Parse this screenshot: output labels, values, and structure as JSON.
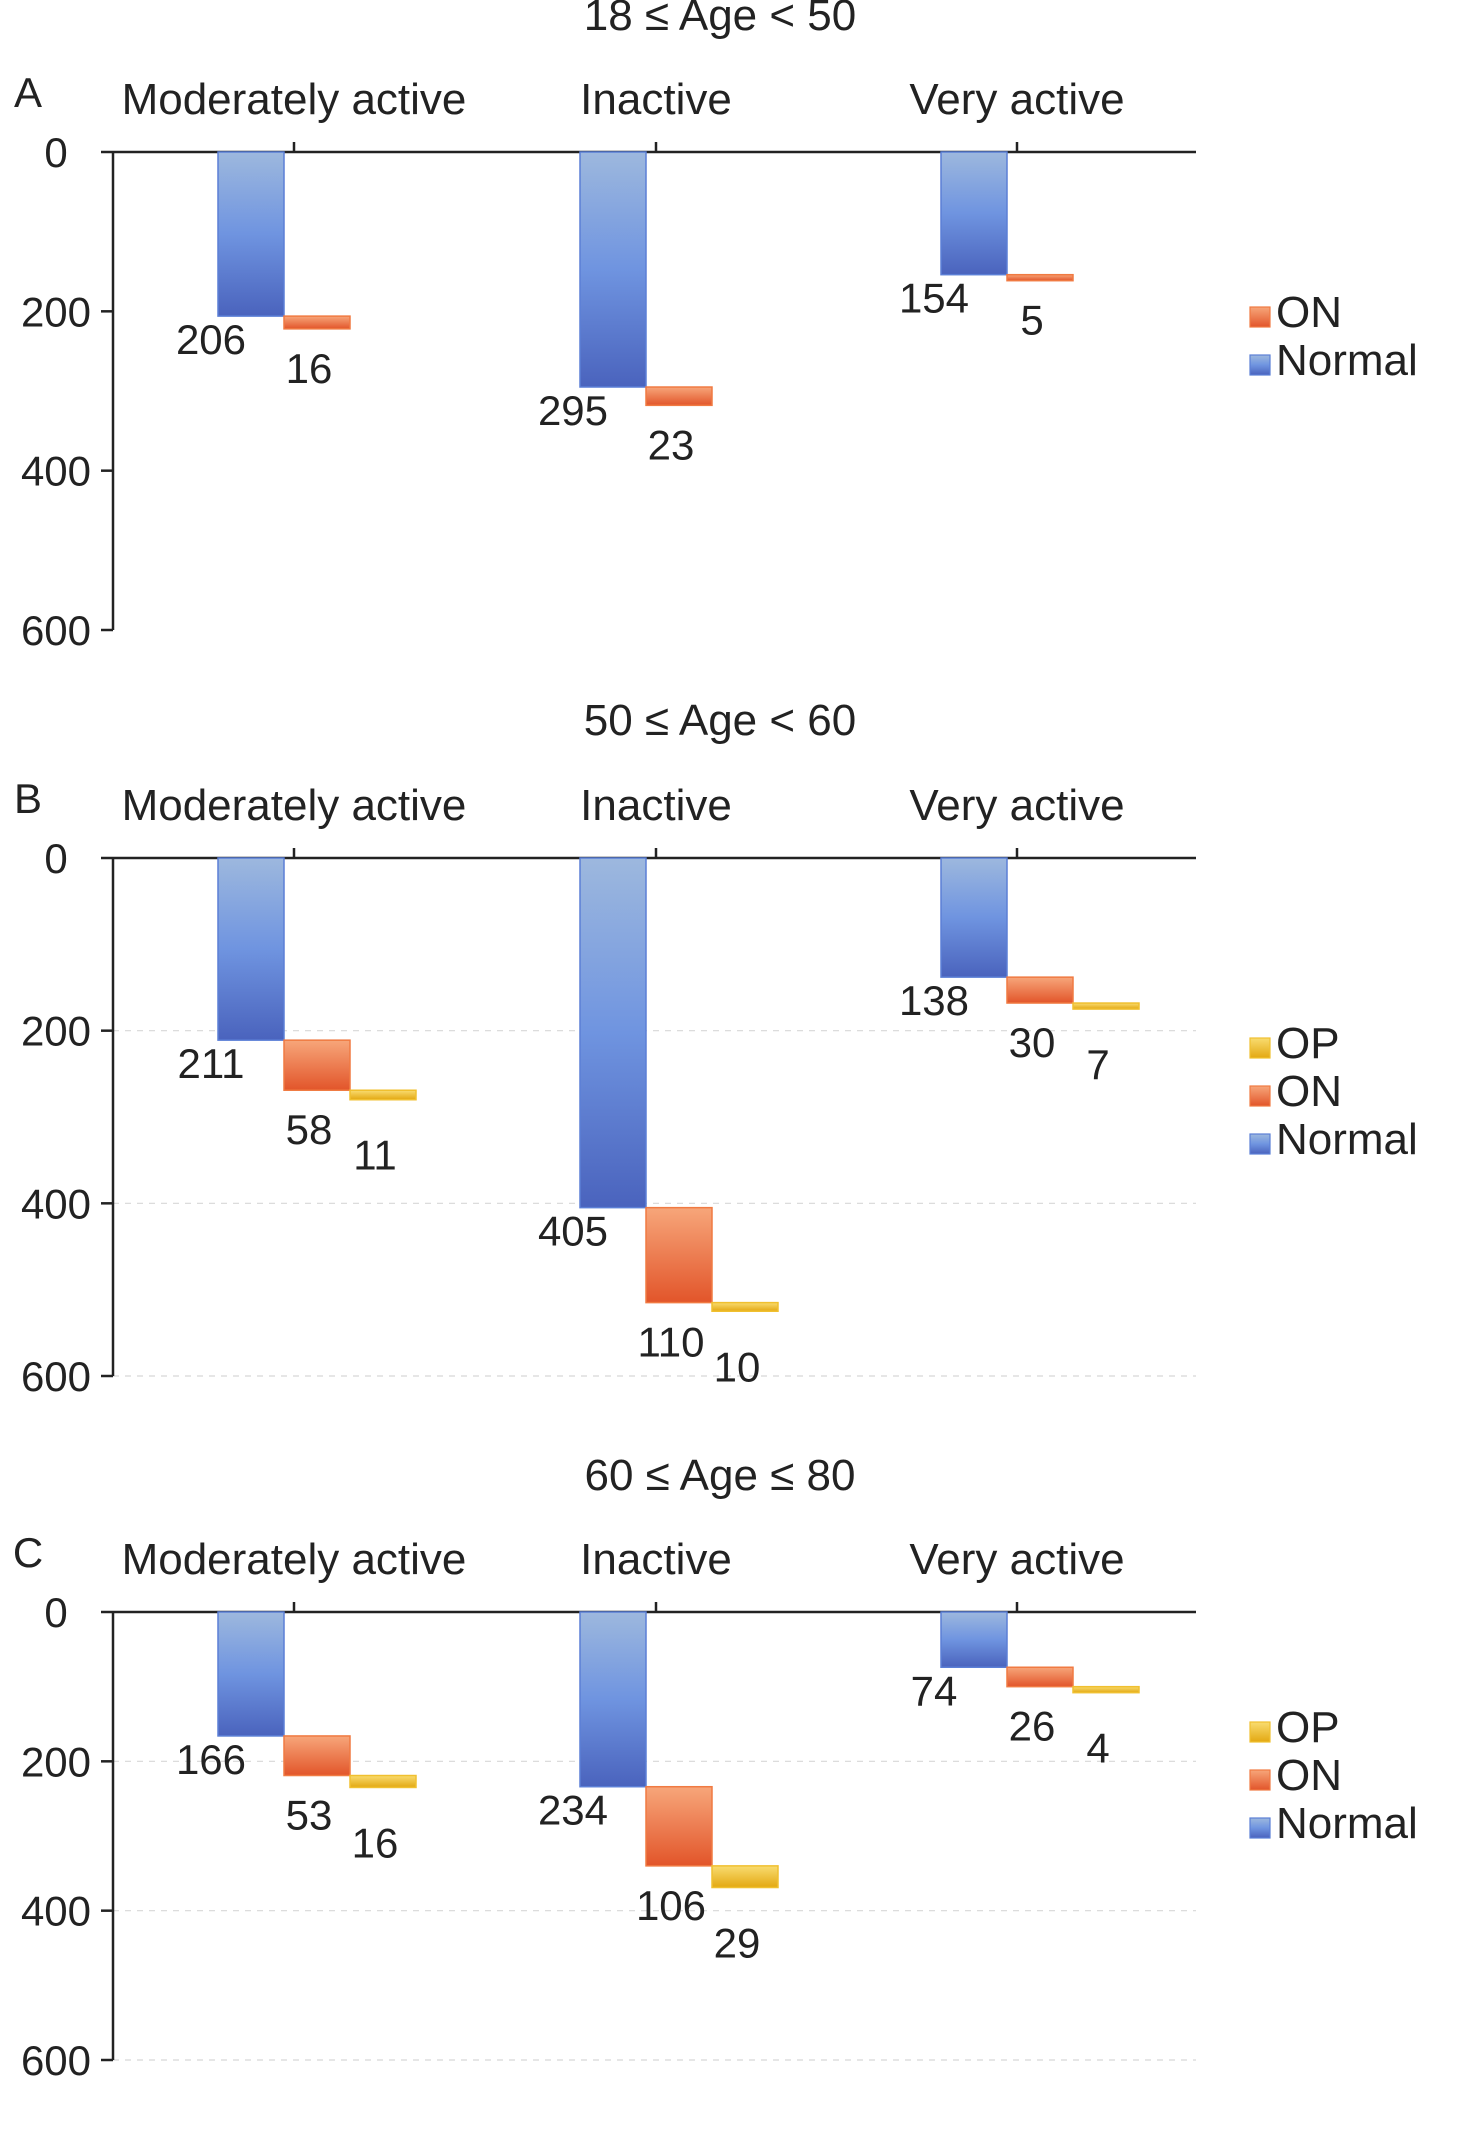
{
  "colors": {
    "Normal": "#5b7fd6",
    "ON": "#f07a42",
    "OP": "#f0c030",
    "axis": "#222222",
    "grid": "#d8d8d8"
  },
  "chart_data": [
    {
      "type": "bar",
      "panel_label": "A",
      "title": "18 ≤ Age < 50",
      "categories": [
        "Moderately active",
        "Inactive",
        "Very active"
      ],
      "ylim": [
        0,
        600
      ],
      "yticks": [
        0,
        200,
        400,
        600
      ],
      "y_inverted": true,
      "stacked_cascade": true,
      "grid": false,
      "legend": "right",
      "legend_order": [
        "ON",
        "Normal"
      ],
      "series": [
        {
          "name": "Normal",
          "values": [
            206,
            295,
            154
          ]
        },
        {
          "name": "ON",
          "values": [
            16,
            23,
            5
          ]
        }
      ]
    },
    {
      "type": "bar",
      "panel_label": "B",
      "title": "50 ≤ Age < 60",
      "categories": [
        "Moderately active",
        "Inactive",
        "Very active"
      ],
      "ylim": [
        0,
        600
      ],
      "yticks": [
        0,
        200,
        400,
        600
      ],
      "y_inverted": true,
      "stacked_cascade": true,
      "grid": true,
      "legend": "right",
      "legend_order": [
        "OP",
        "ON",
        "Normal"
      ],
      "series": [
        {
          "name": "Normal",
          "values": [
            211,
            405,
            138
          ]
        },
        {
          "name": "ON",
          "values": [
            58,
            110,
            30
          ]
        },
        {
          "name": "OP",
          "values": [
            11,
            10,
            7
          ]
        }
      ]
    },
    {
      "type": "bar",
      "panel_label": "C",
      "title": "60 ≤ Age ≤ 80",
      "categories": [
        "Moderately active",
        "Inactive",
        "Very active"
      ],
      "ylim": [
        0,
        600
      ],
      "yticks": [
        0,
        200,
        400,
        600
      ],
      "y_inverted": true,
      "stacked_cascade": true,
      "grid": true,
      "legend": "right",
      "legend_order": [
        "OP",
        "ON",
        "Normal"
      ],
      "series": [
        {
          "name": "Normal",
          "values": [
            166,
            234,
            74
          ]
        },
        {
          "name": "ON",
          "values": [
            53,
            106,
            26
          ]
        },
        {
          "name": "OP",
          "values": [
            16,
            29,
            4
          ]
        }
      ]
    }
  ]
}
